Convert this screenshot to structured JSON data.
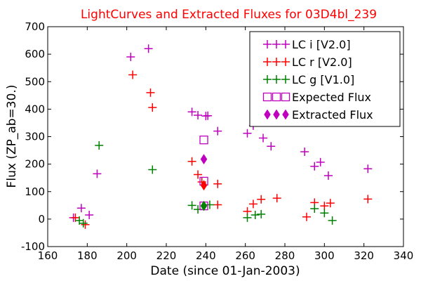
{
  "chart_data": {
    "type": "scatter",
    "title": "LightCurves and Extracted Fluxes for 03D4bl_239",
    "title_color": "#ff0000",
    "xlabel": "Date (since 01-Jan-2003)",
    "ylabel": "Flux (ZP_ab=30.)",
    "xlim": [
      160,
      340
    ],
    "ylim": [
      -100,
      700
    ],
    "xticks": [
      160,
      180,
      200,
      220,
      240,
      260,
      280,
      300,
      320,
      340
    ],
    "yticks": [
      -100,
      0,
      100,
      200,
      300,
      400,
      500,
      600,
      700
    ],
    "grid": false,
    "legend_position": "top-right",
    "series": [
      {
        "name": "LC i [V2.0]",
        "marker": "plus",
        "color": "#bf00bf",
        "points": [
          [
            173,
            5
          ],
          [
            177,
            40
          ],
          [
            181,
            15
          ],
          [
            185,
            165
          ],
          [
            202,
            590
          ],
          [
            211,
            620
          ],
          [
            233,
            390
          ],
          [
            236,
            378
          ],
          [
            240,
            375
          ],
          [
            241,
            376
          ],
          [
            246,
            320
          ],
          [
            261,
            312
          ],
          [
            264,
            340
          ],
          [
            269,
            295
          ],
          [
            273,
            265
          ],
          [
            290,
            245
          ],
          [
            295,
            192
          ],
          [
            298,
            207
          ],
          [
            302,
            158
          ],
          [
            322,
            183
          ]
        ]
      },
      {
        "name": "LC r [V2.0]",
        "marker": "plus",
        "color": "#ff0000",
        "points": [
          [
            174,
            5
          ],
          [
            179,
            -20
          ],
          [
            203,
            525
          ],
          [
            212,
            460
          ],
          [
            213,
            406
          ],
          [
            233,
            210
          ],
          [
            236,
            162
          ],
          [
            238,
            135
          ],
          [
            246,
            128
          ],
          [
            246,
            52
          ],
          [
            261,
            28
          ],
          [
            264,
            55
          ],
          [
            268,
            72
          ],
          [
            276,
            76
          ],
          [
            291,
            8
          ],
          [
            295,
            60
          ],
          [
            300,
            48
          ],
          [
            303,
            58
          ],
          [
            322,
            73
          ]
        ]
      },
      {
        "name": "LC g [V1.0]",
        "marker": "plus",
        "color": "#008000",
        "points": [
          [
            176,
            -5
          ],
          [
            178,
            -15
          ],
          [
            186,
            268
          ],
          [
            213,
            180
          ],
          [
            233,
            50
          ],
          [
            236,
            35
          ],
          [
            242,
            52
          ],
          [
            261,
            5
          ],
          [
            265,
            15
          ],
          [
            268,
            18
          ],
          [
            295,
            38
          ],
          [
            300,
            22
          ],
          [
            304,
            -5
          ]
        ]
      },
      {
        "name": "Expected Flux",
        "marker": "square-open",
        "color": "#bf00bf",
        "points": [
          [
            239,
            288
          ],
          [
            239,
            138
          ],
          [
            239,
            48
          ]
        ]
      },
      {
        "name": "Extracted Flux",
        "marker": "diamond",
        "color": "#bf00bf",
        "points": [
          [
            239,
            218
          ],
          [
            239,
            123
          ],
          [
            239,
            48
          ]
        ],
        "point_colors": [
          "#bf00bf",
          "#ff0000",
          "#008000"
        ]
      }
    ]
  }
}
